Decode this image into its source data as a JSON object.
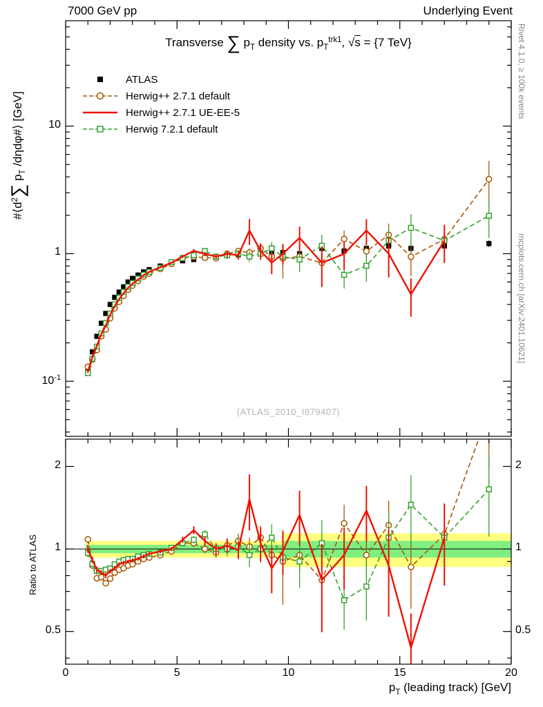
{
  "header": {
    "left": "7000 GeV pp",
    "right": "Underlying Event"
  },
  "side_notes": {
    "top": "Rivet 4.1.0, ≥ 100k events",
    "bottom": "mcplots.cern.ch [arXiv:2401.10621]"
  },
  "watermark": "(ATLAS_2010_I879407)",
  "labels": {
    "title_html": "Transverse <span class=\"sum\">∑</span> p<sub>T</sub> density vs. p<sub>T</sub><sup>trk1</sup>, √<span class=\"ov\">s</span> = {7 TeV}",
    "y_main_html": "#⟨d<sup>2</sup><span class=\"sum\">∑</span> p<sub>T</sub> /dηdφ#⟩ [GeV]",
    "y_ratio": "Ratio to ATLAS",
    "x_html": "p<sub>T</sub> (leading track) [GeV]"
  },
  "chart_data": {
    "type": "line",
    "title": "Transverse sum pT density vs. pT trk1, sqrt(s) = 7 TeV",
    "xlabel": "pT (leading track) [GeV]",
    "x_range": [
      0,
      20
    ],
    "x_major_ticks": [
      0,
      5,
      10,
      15,
      20
    ],
    "x_minor_step": 1,
    "legend_position": "top-left",
    "grid": false,
    "main_panel": {
      "y_scale": "log",
      "y_range": [
        0.037,
        67
      ],
      "y_ticks": [
        {
          "v": 10,
          "html": "10"
        },
        {
          "v": 1,
          "html": "1"
        },
        {
          "v": 0.1,
          "html": "10<sup>-1</sup>"
        }
      ]
    },
    "ratio_panel": {
      "y_scale": "log",
      "y_range": [
        0.38,
        2.515
      ],
      "y_ticks": [
        {
          "v": 2,
          "html": "2"
        },
        {
          "v": 1,
          "html": "1"
        },
        {
          "v": 0.5,
          "html": "0.5"
        }
      ],
      "y_minor_ticks": [
        0.4,
        0.6,
        0.7,
        0.8,
        0.9
      ],
      "reference_line": 1,
      "bands": {
        "yellow": {
          "color": "#ffff80",
          "segments": [
            {
              "x0": 0.9,
              "x1": 9.75,
              "lo": 0.93,
              "hi": 1.07
            },
            {
              "x0": 9.75,
              "x1": 20,
              "lo": 0.86,
              "hi": 1.14
            }
          ]
        },
        "green": {
          "color": "#80ee80",
          "segments": [
            {
              "x0": 0.9,
              "x1": 9.75,
              "lo": 0.965,
              "hi": 1.035
            },
            {
              "x0": 9.75,
              "x1": 20,
              "lo": 0.93,
              "hi": 1.07
            }
          ]
        }
      }
    },
    "x": [
      1.0,
      1.2,
      1.4,
      1.6,
      1.8,
      2.0,
      2.2,
      2.4,
      2.6,
      2.8,
      3.0,
      3.25,
      3.5,
      3.75,
      4.25,
      4.75,
      5.25,
      5.75,
      6.25,
      6.75,
      7.25,
      7.75,
      8.25,
      8.75,
      9.25,
      9.75,
      10.5,
      11.5,
      12.5,
      13.5,
      14.5,
      15.5,
      17.0,
      19.0
    ],
    "series": [
      {
        "name": "ATLAS",
        "color": "#000000",
        "marker": "square-filled",
        "line": "none",
        "values": [
          0.12,
          0.17,
          0.225,
          0.285,
          0.34,
          0.4,
          0.455,
          0.5,
          0.55,
          0.6,
          0.64,
          0.68,
          0.72,
          0.75,
          0.8,
          0.85,
          0.88,
          0.9,
          0.93,
          0.95,
          0.97,
          0.98,
          1.0,
          1.0,
          1.0,
          1.02,
          1.0,
          1.1,
          1.05,
          1.1,
          1.15,
          1.1,
          1.15,
          1.2
        ],
        "errors": [
          0.005,
          0.005,
          0.006,
          0.007,
          0.008,
          0.009,
          0.01,
          0.01,
          0.011,
          0.012,
          0.012,
          0.013,
          0.013,
          0.014,
          0.015,
          0.016,
          0.017,
          0.018,
          0.019,
          0.02,
          0.022,
          0.024,
          0.026,
          0.028,
          0.03,
          0.032,
          0.035,
          0.04,
          0.045,
          0.05,
          0.055,
          0.06,
          0.065,
          0.07
        ]
      },
      {
        "name": "Herwig++ 2.7.1 default",
        "color": "#aa5500",
        "marker": "circle-open",
        "line": "dashed",
        "values": [
          0.13,
          0.148,
          0.176,
          0.225,
          0.255,
          0.312,
          0.373,
          0.42,
          0.468,
          0.522,
          0.563,
          0.612,
          0.662,
          0.698,
          0.76,
          0.833,
          0.924,
          0.945,
          0.93,
          0.922,
          0.999,
          1.049,
          1.02,
          1.1,
          0.95,
          0.918,
          0.95,
          0.847,
          1.302,
          1.045,
          1.403,
          0.946,
          1.3,
          3.84
        ],
        "errors": [
          0.004,
          0.004,
          0.005,
          0.005,
          0.006,
          0.006,
          0.007,
          0.007,
          0.008,
          0.008,
          0.009,
          0.01,
          0.011,
          0.012,
          0.013,
          0.015,
          0.025,
          0.03,
          0.035,
          0.04,
          0.055,
          0.065,
          0.08,
          0.11,
          0.1,
          0.28,
          0.13,
          0.13,
          0.22,
          0.18,
          0.32,
          0.28,
          0.33,
          1.5
        ]
      },
      {
        "name": "Herwig++ 2.7.1 UE-EE-5",
        "color": "#ee1100",
        "marker": "none",
        "line": "solid",
        "width": 2.4,
        "values": [
          0.12,
          0.155,
          0.189,
          0.234,
          0.272,
          0.332,
          0.387,
          0.44,
          0.49,
          0.54,
          0.582,
          0.626,
          0.677,
          0.72,
          0.784,
          0.85,
          0.95,
          1.053,
          0.995,
          0.95,
          0.999,
          0.97,
          1.52,
          1.05,
          0.85,
          1.0,
          1.33,
          0.847,
          0.998,
          1.518,
          1.001,
          0.48,
          1.265,
          null
        ],
        "errors": [
          0.004,
          0.004,
          0.005,
          0.005,
          0.006,
          0.006,
          0.007,
          0.007,
          0.008,
          0.008,
          0.009,
          0.01,
          0.011,
          0.012,
          0.013,
          0.015,
          0.025,
          0.035,
          0.04,
          0.045,
          0.06,
          0.07,
          0.35,
          0.15,
          0.16,
          0.18,
          0.3,
          0.3,
          0.25,
          0.35,
          0.35,
          0.16,
          0.42,
          null
        ]
      },
      {
        "name": "Herwig 7.2.1 default",
        "color": "#33a02c",
        "marker": "square-open",
        "line": "dashed",
        "values": [
          0.116,
          0.15,
          0.187,
          0.237,
          0.286,
          0.34,
          0.4,
          0.45,
          0.501,
          0.552,
          0.589,
          0.639,
          0.684,
          0.72,
          0.776,
          0.859,
          0.924,
          0.972,
          1.051,
          0.95,
          0.97,
          1.0,
          0.95,
          1.0,
          1.1,
          0.949,
          0.9,
          1.155,
          0.683,
          0.803,
          1.265,
          1.595,
          1.265,
          1.98
        ],
        "errors": [
          0.004,
          0.004,
          0.005,
          0.005,
          0.006,
          0.006,
          0.007,
          0.007,
          0.008,
          0.008,
          0.009,
          0.01,
          0.011,
          0.012,
          0.013,
          0.015,
          0.025,
          0.03,
          0.04,
          0.045,
          0.06,
          0.07,
          0.09,
          0.11,
          0.13,
          0.13,
          0.18,
          0.25,
          0.15,
          0.2,
          0.3,
          0.45,
          0.4,
          0.65
        ]
      }
    ]
  }
}
